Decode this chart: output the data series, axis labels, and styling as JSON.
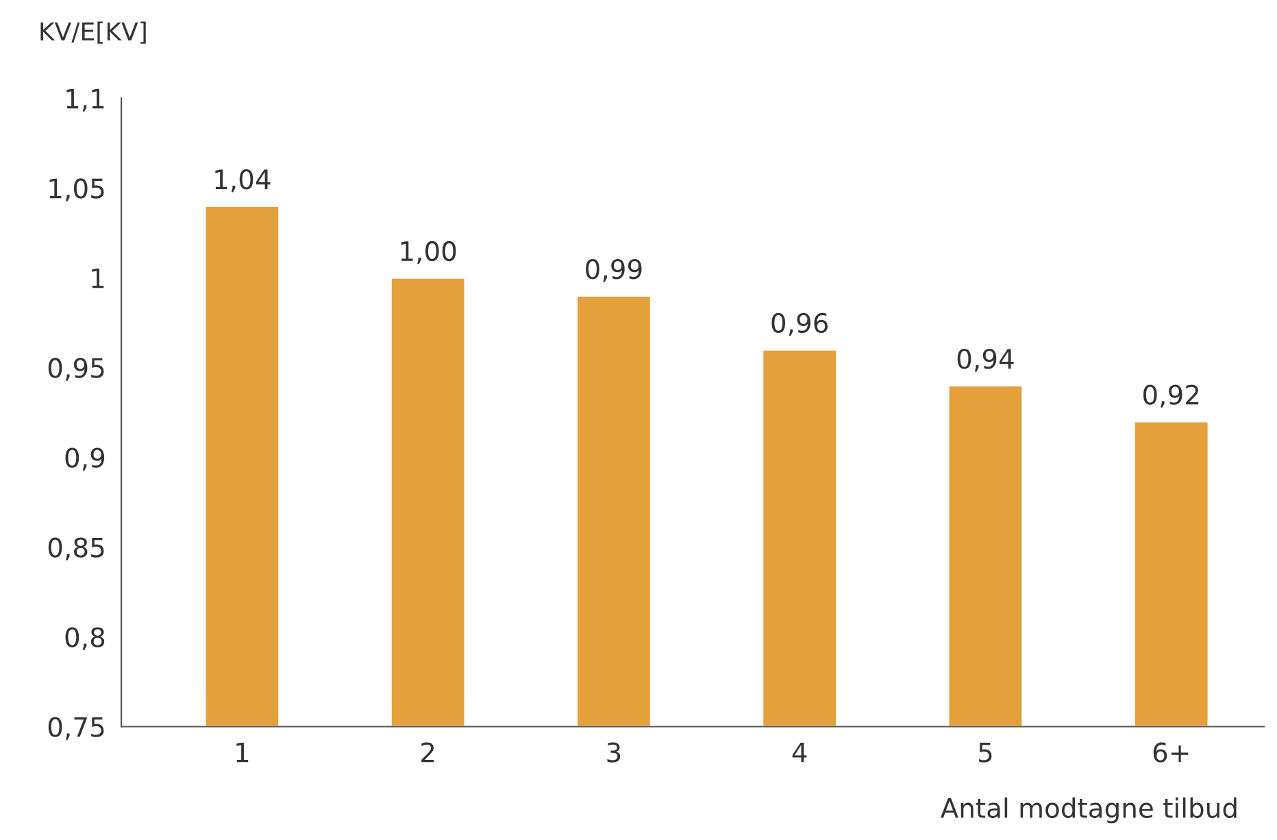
{
  "chart_data": {
    "type": "bar",
    "ylabel": "KV/E[KV]",
    "xlabel": "Antal modtagne tilbud",
    "categories": [
      "1",
      "2",
      "3",
      "4",
      "5",
      "6+"
    ],
    "values": [
      1.04,
      1.0,
      0.99,
      0.96,
      0.94,
      0.92
    ],
    "value_labels": [
      "1,04",
      "1,00",
      "0,99",
      "0,96",
      "0,94",
      "0,92"
    ],
    "color": "#e4a03b",
    "ylim": [
      0.75,
      1.1
    ],
    "yticks": [
      {
        "value": 0.75,
        "label": "0,75"
      },
      {
        "value": 0.8,
        "label": "0,8"
      },
      {
        "value": 0.85,
        "label": "0,85"
      },
      {
        "value": 0.9,
        "label": "0,9"
      },
      {
        "value": 0.95,
        "label": "0,95"
      },
      {
        "value": 1,
        "label": "1"
      },
      {
        "value": 1.05,
        "label": "1,05"
      },
      {
        "value": 1.1,
        "label": "1,1"
      }
    ],
    "grid": false,
    "legend": false
  }
}
